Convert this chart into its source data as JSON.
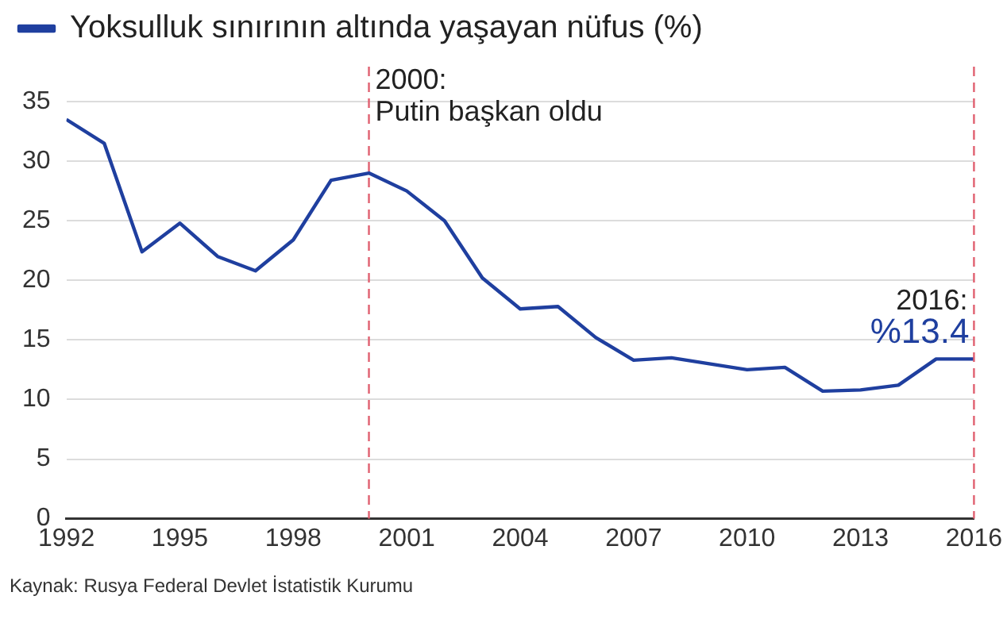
{
  "chart_data": {
    "type": "line",
    "legend": "top left",
    "grid": "y",
    "line_style": "solid",
    "marker": "none",
    "x": [
      1992,
      1993,
      1994,
      1995,
      1996,
      1997,
      1998,
      1999,
      2000,
      2001,
      2002,
      2003,
      2004,
      2005,
      2006,
      2007,
      2008,
      2009,
      2010,
      2011,
      2012,
      2013,
      2014,
      2015,
      2016
    ],
    "series": [
      {
        "name": "Yoksulluk sınırının altında yaşayan nüfus (%)",
        "color": "#1f3f9f",
        "values": [
          33.5,
          31.5,
          22.4,
          24.8,
          22,
          20.8,
          23.4,
          28.4,
          29,
          27.5,
          25,
          20.2,
          17.6,
          17.8,
          15.2,
          13.3,
          13.5,
          13,
          12.5,
          12.7,
          10.7,
          10.8,
          11.2,
          13.4,
          13.4
        ]
      }
    ],
    "xlim": [
      1992,
      2016
    ],
    "xticks": [
      1992,
      1995,
      1998,
      2001,
      2004,
      2007,
      2010,
      2013,
      2016
    ],
    "ylim": [
      0,
      35
    ],
    "yticks": [
      0,
      5,
      10,
      15,
      20,
      25,
      30,
      35
    ],
    "ref_lines": [
      {
        "axis": "x",
        "value": 2000,
        "label": "2000:\nPutin başkan oldu",
        "color": "#e06070",
        "line_style": "dashed"
      },
      {
        "axis": "x",
        "value": 2016,
        "label": "2016:",
        "color": "#e06070",
        "line_style": "dashed"
      }
    ],
    "annotations": [
      {
        "text": "%13.4",
        "x": 2016,
        "y": 13.4
      },
      "Kaynak: Rusya Federal Devlet İstatistik Kurumu"
    ]
  }
}
